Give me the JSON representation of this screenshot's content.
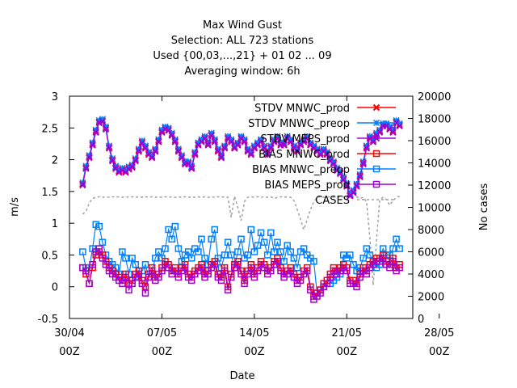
{
  "chart_data": {
    "type": "line",
    "title_lines": [
      "Max Wind Gust",
      "Selection: ALL    723 stations",
      "Used {00,03,...,21} + 01 02 ... 09",
      "Averaging window:  6h"
    ],
    "xlabel": "Date",
    "ylabel": "m/s",
    "y2label": "No cases",
    "x_range_days": [
      0,
      26
    ],
    "x_ticks": [
      {
        "day": 0,
        "line1": "30/04",
        "line2": "00Z"
      },
      {
        "day": 7,
        "line1": "07/05",
        "line2": "00Z"
      },
      {
        "day": 14,
        "line1": "14/05",
        "line2": "00Z"
      },
      {
        "day": 21,
        "line1": "21/05",
        "line2": "00Z"
      },
      {
        "day": 28,
        "line1": "28/05",
        "line2": "00Z"
      }
    ],
    "ylim": [
      -0.5,
      3
    ],
    "y_ticks": [
      "-0.5",
      "0",
      "0.5",
      "1",
      "1.5",
      "2",
      "2.5",
      "3"
    ],
    "y2lim": [
      0,
      20000
    ],
    "y2_ticks": [
      "0",
      "2000",
      "4000",
      "6000",
      "8000",
      "10000",
      "12000",
      "14000",
      "16000",
      "18000",
      "20000"
    ],
    "grid": false,
    "legend_position": "top-right",
    "series": [
      {
        "name": "STDV MNWC_prod",
        "axis": "y",
        "color": "#ff0000",
        "marker": "x",
        "key": "stdv",
        "offset": 0.0
      },
      {
        "name": "STDV MNWC_preop",
        "axis": "y",
        "color": "#0080ff",
        "marker": "star",
        "key": "stdv",
        "offset": 0.02
      },
      {
        "name": "STDV MEPS_prod",
        "axis": "y",
        "color": "#a000d0",
        "marker": "x",
        "key": "stdv",
        "offset": -0.02
      },
      {
        "name": "BIAS MNWC_prod",
        "axis": "y",
        "color": "#ff0000",
        "marker": "square",
        "key": "bias_prod",
        "offset": 0.0
      },
      {
        "name": "BIAS MNWC_preop",
        "axis": "y",
        "color": "#0080ff",
        "marker": "square",
        "key": "bias_preop",
        "offset": 0.0
      },
      {
        "name": "BIAS MEPS_prod",
        "axis": "y",
        "color": "#a000d0",
        "marker": "square",
        "key": "bias_meps",
        "offset": 0.0
      },
      {
        "name": "CASES",
        "axis": "y2",
        "color": "#a0a0a0",
        "marker": "none",
        "key": "cases",
        "offset": 0.0
      }
    ],
    "day_values": [
      1.0,
      1.25,
      1.5,
      1.75,
      2.0,
      2.25,
      2.5,
      2.75,
      3.0,
      3.25,
      3.5,
      3.75,
      4.0,
      4.25,
      4.5,
      4.75,
      5.0,
      5.25,
      5.5,
      5.75,
      6.0,
      6.25,
      6.5,
      6.75,
      7.0,
      7.25,
      7.5,
      7.75,
      8.0,
      8.25,
      8.5,
      8.75,
      9.0,
      9.25,
      9.5,
      9.75,
      10.0,
      10.25,
      10.5,
      10.75,
      11.0,
      11.25,
      11.5,
      11.75,
      12.0,
      12.25,
      12.5,
      12.75,
      13.0,
      13.25,
      13.5,
      13.75,
      14.0,
      14.25,
      14.5,
      14.75,
      15.0,
      15.25,
      15.5,
      15.75,
      16.0,
      16.25,
      16.5,
      16.75,
      17.0,
      17.25,
      17.5,
      17.75,
      18.0,
      18.25,
      18.5,
      18.75,
      19.0,
      19.25,
      19.5,
      19.75,
      20.0,
      20.25,
      20.5,
      20.75,
      21.0,
      21.25,
      21.5,
      21.75,
      22.0,
      22.25,
      22.5,
      22.75,
      23.0,
      23.25,
      23.5,
      23.75,
      24.0,
      24.25,
      24.5,
      24.75,
      25.0
    ],
    "stdv": [
      1.62,
      1.88,
      2.05,
      2.25,
      2.45,
      2.6,
      2.62,
      2.5,
      2.2,
      2.0,
      1.88,
      1.82,
      1.85,
      1.82,
      1.87,
      1.9,
      2.0,
      2.15,
      2.28,
      2.2,
      2.1,
      2.05,
      2.15,
      2.3,
      2.45,
      2.5,
      2.48,
      2.4,
      2.3,
      2.15,
      2.05,
      1.95,
      1.95,
      1.88,
      2.1,
      2.25,
      2.3,
      2.35,
      2.25,
      2.4,
      2.3,
      2.15,
      2.05,
      2.2,
      2.35,
      2.3,
      2.2,
      2.25,
      2.35,
      2.3,
      2.15,
      2.1,
      2.2,
      2.25,
      2.3,
      2.2,
      2.1,
      2.2,
      2.3,
      2.35,
      2.25,
      2.25,
      2.35,
      2.3,
      2.2,
      2.15,
      2.25,
      2.3,
      2.35,
      2.25,
      2.2,
      2.15,
      2.1,
      2.15,
      2.1,
      2.0,
      1.95,
      1.85,
      1.8,
      1.7,
      1.6,
      1.45,
      1.5,
      1.6,
      1.75,
      1.95,
      2.2,
      2.35,
      2.3,
      2.4,
      2.45,
      2.55,
      2.55,
      2.5,
      2.45,
      2.6,
      2.55
    ],
    "bias_prod": [
      0.3,
      0.2,
      0.05,
      0.3,
      0.5,
      0.55,
      0.5,
      0.4,
      0.3,
      0.25,
      0.2,
      0.15,
      0.1,
      0.2,
      0.05,
      0.1,
      0.2,
      0.25,
      0.1,
      0.0,
      0.2,
      0.3,
      0.15,
      0.2,
      0.3,
      0.4,
      0.35,
      0.25,
      0.3,
      0.2,
      0.3,
      0.35,
      0.2,
      0.15,
      0.25,
      0.3,
      0.35,
      0.2,
      0.25,
      0.35,
      0.4,
      0.2,
      0.15,
      0.3,
      0.0,
      0.2,
      0.35,
      0.4,
      0.25,
      0.1,
      0.25,
      0.35,
      0.2,
      0.3,
      0.4,
      0.35,
      0.25,
      0.3,
      0.4,
      0.45,
      0.3,
      0.2,
      0.25,
      0.3,
      0.2,
      0.1,
      0.15,
      0.25,
      0.3,
      0.0,
      -0.15,
      -0.1,
      -0.05,
      0.05,
      0.1,
      0.2,
      0.3,
      0.25,
      0.3,
      0.35,
      0.3,
      0.1,
      0.1,
      0.05,
      0.2,
      0.3,
      0.25,
      0.35,
      0.4,
      0.45,
      0.45,
      0.5,
      0.4,
      0.35,
      0.45,
      0.3,
      0.35
    ],
    "bias_preop": [
      0.55,
      0.3,
      0.3,
      0.6,
      0.98,
      0.95,
      0.7,
      0.5,
      0.4,
      0.35,
      0.3,
      0.2,
      0.55,
      0.45,
      0.2,
      0.45,
      0.35,
      0.15,
      0.25,
      0.35,
      0.15,
      0.25,
      0.45,
      0.55,
      0.45,
      0.6,
      0.9,
      0.75,
      0.95,
      0.6,
      0.4,
      0.5,
      0.55,
      0.45,
      0.6,
      0.55,
      0.75,
      0.45,
      0.35,
      0.75,
      0.9,
      0.45,
      0.3,
      0.5,
      0.7,
      0.5,
      0.3,
      0.55,
      0.75,
      0.45,
      0.5,
      0.9,
      0.55,
      0.65,
      0.85,
      0.7,
      0.5,
      0.85,
      0.55,
      0.7,
      0.55,
      0.4,
      0.65,
      0.55,
      0.45,
      0.3,
      0.55,
      0.6,
      0.5,
      0.45,
      0.4,
      -0.1,
      -0.05,
      0.0,
      0.05,
      0.05,
      0.1,
      0.15,
      0.2,
      0.5,
      0.45,
      0.5,
      0.35,
      0.25,
      0.3,
      0.45,
      0.6,
      0.5,
      0.4,
      0.3,
      0.35,
      0.6,
      0.5,
      0.5,
      0.6,
      0.75,
      0.6
    ],
    "bias_meps": [
      0.3,
      0.25,
      0.05,
      0.35,
      0.55,
      0.6,
      0.45,
      0.35,
      0.25,
      0.2,
      0.15,
      0.1,
      0.05,
      0.15,
      -0.05,
      0.05,
      0.15,
      0.2,
      0.05,
      -0.1,
      0.15,
      0.25,
      0.1,
      0.15,
      0.25,
      0.35,
      0.3,
      0.2,
      0.25,
      0.15,
      0.25,
      0.3,
      0.15,
      0.1,
      0.2,
      0.25,
      0.3,
      0.15,
      0.2,
      0.3,
      0.35,
      0.15,
      0.1,
      0.25,
      -0.05,
      0.15,
      0.3,
      0.35,
      0.2,
      0.05,
      0.2,
      0.3,
      0.15,
      0.25,
      0.35,
      0.3,
      0.2,
      0.25,
      0.35,
      0.4,
      0.25,
      0.15,
      0.2,
      0.25,
      0.15,
      0.05,
      0.1,
      0.2,
      0.25,
      -0.05,
      -0.2,
      -0.15,
      -0.1,
      0.0,
      0.05,
      0.15,
      0.25,
      0.2,
      0.25,
      0.3,
      0.25,
      0.05,
      0.05,
      0.0,
      0.15,
      0.25,
      0.2,
      0.3,
      0.35,
      0.4,
      0.4,
      0.45,
      0.35,
      0.3,
      0.4,
      0.25,
      0.3
    ],
    "cases": [
      9400,
      9600,
      10400,
      10800,
      10900,
      10950,
      10900,
      10950,
      10900,
      10950,
      10900,
      10950,
      10900,
      10950,
      10900,
      10950,
      10900,
      10950,
      10900,
      10950,
      10900,
      10950,
      10900,
      10950,
      10900,
      10950,
      10900,
      10950,
      10900,
      10950,
      10900,
      10950,
      10900,
      10950,
      10900,
      10950,
      10900,
      10950,
      10900,
      10950,
      10900,
      10950,
      10900,
      10950,
      10900,
      9100,
      11000,
      10000,
      8800,
      10500,
      10900,
      10950,
      10900,
      10950,
      10900,
      10950,
      10900,
      10950,
      10800,
      10900,
      10950,
      10900,
      10950,
      10900,
      10600,
      9800,
      8900,
      8000,
      8900,
      9800,
      10500,
      10900,
      10950,
      10900,
      10900,
      10950,
      10900,
      10950,
      10900,
      10950,
      10900,
      10950,
      10900,
      10950,
      10800,
      10900,
      10500,
      7200,
      3000,
      7000,
      10700,
      10900,
      10700,
      10200,
      10600,
      10900,
      11000
    ]
  }
}
